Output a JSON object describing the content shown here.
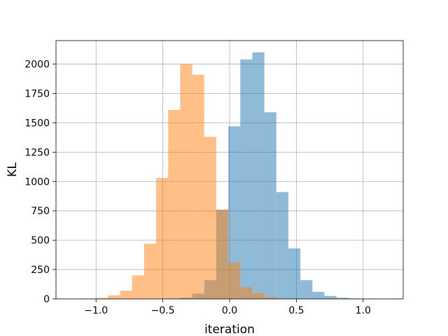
{
  "chart_data": {
    "type": "bar",
    "title": "",
    "xlabel": "iteration",
    "ylabel": "KL",
    "xlim": [
      -1.3,
      1.3
    ],
    "ylim": [
      0,
      2200
    ],
    "grid": true,
    "legend": "none",
    "xticks": [
      -1.0,
      -0.5,
      0.0,
      0.5,
      1.0
    ],
    "xtick_labels": [
      "−1.0",
      "−0.5",
      "0.0",
      "0.5",
      "1.0"
    ],
    "yticks": [
      0,
      250,
      500,
      750,
      1000,
      1250,
      1500,
      1750,
      2000
    ],
    "ytick_labels": [
      "0",
      "250",
      "500",
      "750",
      "1000",
      "1250",
      "1500",
      "1750",
      "2000"
    ],
    "series": [
      {
        "color": "#1f77b4",
        "opacity": 0.5,
        "bins": [
          [
            -0.46,
            -0.37,
            3
          ],
          [
            -0.37,
            -0.28,
            10
          ],
          [
            -0.28,
            -0.19,
            45
          ],
          [
            -0.19,
            -0.1,
            160
          ],
          [
            -0.1,
            -0.01,
            760
          ],
          [
            -0.01,
            0.08,
            1470
          ],
          [
            0.08,
            0.17,
            2040
          ],
          [
            0.17,
            0.26,
            2100
          ],
          [
            0.26,
            0.35,
            1590
          ],
          [
            0.35,
            0.44,
            910
          ],
          [
            0.44,
            0.53,
            430
          ],
          [
            0.53,
            0.62,
            160
          ],
          [
            0.62,
            0.71,
            60
          ],
          [
            0.71,
            0.8,
            25
          ],
          [
            0.8,
            0.89,
            10
          ],
          [
            0.89,
            0.98,
            4
          ]
        ]
      },
      {
        "color": "#ff7f0e",
        "opacity": 0.5,
        "bins": [
          [
            -1.09,
            -1.0,
            3
          ],
          [
            -1.0,
            -0.91,
            8
          ],
          [
            -0.91,
            -0.82,
            30
          ],
          [
            -0.82,
            -0.73,
            70
          ],
          [
            -0.73,
            -0.64,
            200
          ],
          [
            -0.64,
            -0.55,
            470
          ],
          [
            -0.55,
            -0.46,
            1030
          ],
          [
            -0.46,
            -0.37,
            1610
          ],
          [
            -0.37,
            -0.28,
            2000
          ],
          [
            -0.28,
            -0.19,
            1910
          ],
          [
            -0.19,
            -0.1,
            1380
          ],
          [
            -0.1,
            -0.01,
            760
          ],
          [
            -0.01,
            0.08,
            310
          ],
          [
            0.08,
            0.17,
            100
          ],
          [
            0.17,
            0.26,
            50
          ],
          [
            0.26,
            0.35,
            15
          ],
          [
            0.35,
            0.44,
            5
          ]
        ]
      }
    ]
  }
}
